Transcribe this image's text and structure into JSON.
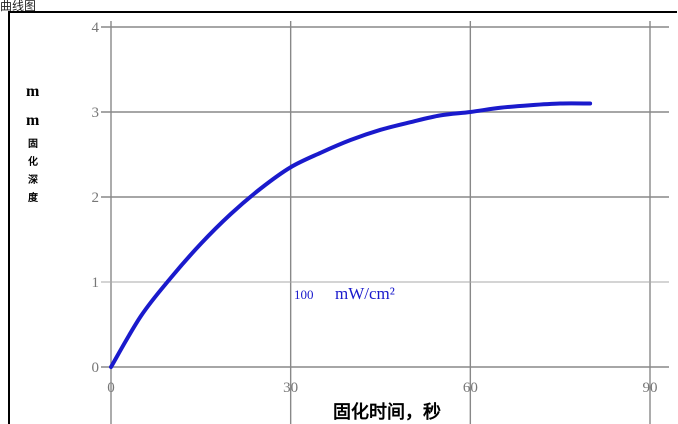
{
  "window": {
    "title": "曲线图"
  },
  "chart_data": {
    "type": "line",
    "title": "",
    "xlabel": "固化时间，秒",
    "ylabel_unit": "m m",
    "ylabel_cn": [
      "固",
      "化",
      "深",
      "度"
    ],
    "xlim": [
      0,
      90
    ],
    "ylim": [
      0,
      4
    ],
    "x_ticks": [
      0,
      30,
      60,
      90
    ],
    "y_ticks": [
      0,
      1,
      2,
      3,
      4
    ],
    "grid": true,
    "line_color": "#1a1acc",
    "series": [
      {
        "label_num": "100",
        "label_unit": "mW/cm²",
        "x": [
          0,
          5,
          10,
          15,
          20,
          25,
          30,
          35,
          40,
          45,
          50,
          55,
          60,
          65,
          70,
          75,
          80
        ],
        "y": [
          0.0,
          0.6,
          1.05,
          1.45,
          1.8,
          2.1,
          2.35,
          2.52,
          2.67,
          2.79,
          2.88,
          2.96,
          3.0,
          3.05,
          3.08,
          3.1,
          3.1
        ]
      }
    ]
  }
}
